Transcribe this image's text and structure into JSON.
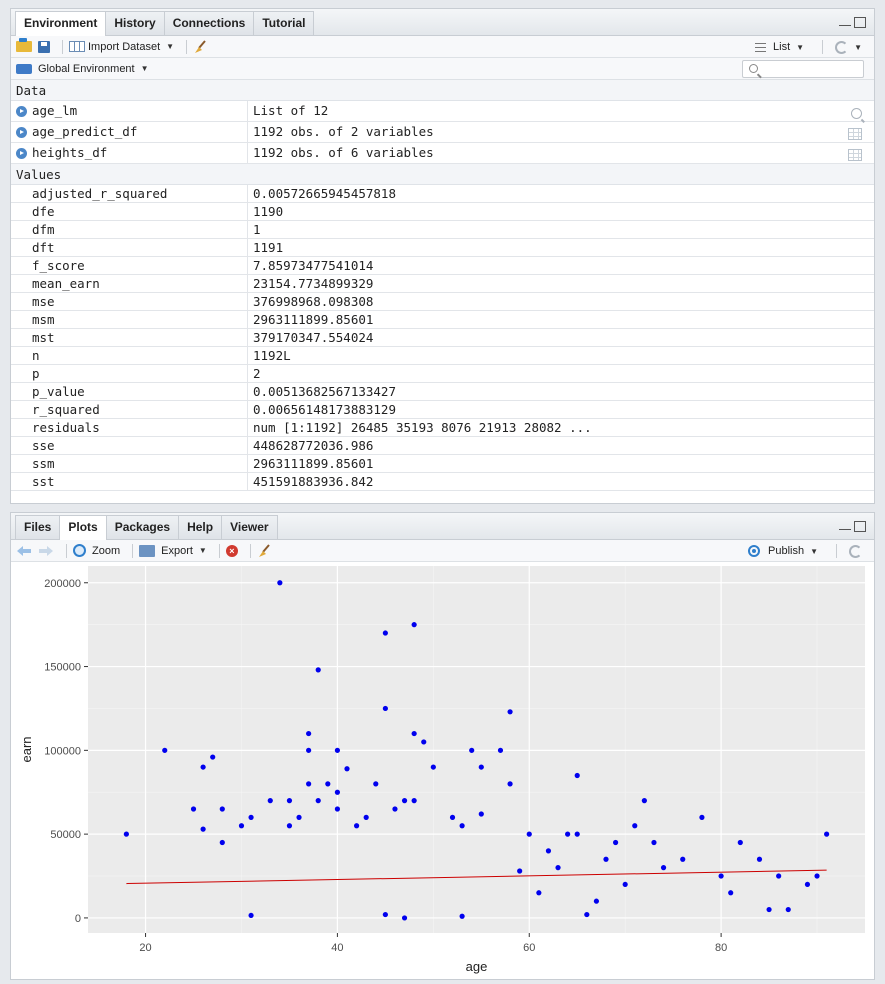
{
  "env_pane": {
    "tabs": [
      "Environment",
      "History",
      "Connections",
      "Tutorial"
    ],
    "active_tab": "Environment",
    "toolbar": {
      "import_label": "Import Dataset",
      "view_label": "List",
      "env_label": "Global Environment"
    },
    "search": {
      "placeholder": ""
    },
    "data_header": "Data",
    "values_header": "Values",
    "data_rows": [
      {
        "name": "age_lm",
        "value": "List of 12",
        "icon": "search-icon"
      },
      {
        "name": "age_predict_df",
        "value": "1192 obs. of 2 variables",
        "icon": "grid-icon"
      },
      {
        "name": "heights_df",
        "value": "1192 obs. of 6 variables",
        "icon": "grid-icon"
      }
    ],
    "value_rows": [
      {
        "name": "adjusted_r_squared",
        "value": "0.00572665945457818"
      },
      {
        "name": "dfe",
        "value": "1190"
      },
      {
        "name": "dfm",
        "value": "1"
      },
      {
        "name": "dft",
        "value": "1191"
      },
      {
        "name": "f_score",
        "value": "7.85973477541014"
      },
      {
        "name": "mean_earn",
        "value": "23154.7734899329"
      },
      {
        "name": "mse",
        "value": "376998968.098308"
      },
      {
        "name": "msm",
        "value": "2963111899.85601"
      },
      {
        "name": "mst",
        "value": "379170347.554024"
      },
      {
        "name": "n",
        "value": "1192L"
      },
      {
        "name": "p",
        "value": "2"
      },
      {
        "name": "p_value",
        "value": "0.00513682567133427"
      },
      {
        "name": "r_squared",
        "value": "0.00656148173883129"
      },
      {
        "name": "residuals",
        "value": "num [1:1192] 26485 35193 8076 21913 28082 ..."
      },
      {
        "name": "sse",
        "value": "448628772036.986"
      },
      {
        "name": "ssm",
        "value": "2963111899.85601"
      },
      {
        "name": "sst",
        "value": "451591883936.842"
      }
    ]
  },
  "plot_pane": {
    "tabs": [
      "Files",
      "Plots",
      "Packages",
      "Help",
      "Viewer"
    ],
    "active_tab": "Plots",
    "toolbar": {
      "zoom_label": "Zoom",
      "export_label": "Export",
      "publish_label": "Publish"
    }
  },
  "colors": {
    "points": "#0000ee",
    "fit_line": "#cc0000",
    "panel_bg": "#ebebeb",
    "accent": "#2f7fcc"
  },
  "chart_data": {
    "type": "scatter",
    "xlabel": "age",
    "ylabel": "earn",
    "xlim": [
      14,
      95
    ],
    "ylim": [
      -9000,
      210000
    ],
    "xticks": [
      20,
      40,
      60,
      80
    ],
    "yticks": [
      0,
      50000,
      100000,
      150000,
      200000
    ],
    "grid": true,
    "fit_line": {
      "x": [
        18,
        91
      ],
      "y": [
        20500,
        28500
      ]
    },
    "points": [
      [
        34,
        200000
      ],
      [
        45,
        170000
      ],
      [
        48,
        175000
      ],
      [
        38,
        148000
      ],
      [
        45,
        125000
      ],
      [
        58,
        123000
      ],
      [
        37,
        110000
      ],
      [
        48,
        110000
      ],
      [
        49,
        105000
      ],
      [
        22,
        100000
      ],
      [
        37,
        100000
      ],
      [
        40,
        100000
      ],
      [
        54,
        100000
      ],
      [
        57,
        100000
      ],
      [
        27,
        96000
      ],
      [
        26,
        90000
      ],
      [
        41,
        89000
      ],
      [
        50,
        90000
      ],
      [
        55,
        90000
      ],
      [
        65,
        85000
      ],
      [
        37,
        80000
      ],
      [
        39,
        80000
      ],
      [
        44,
        80000
      ],
      [
        58,
        80000
      ],
      [
        40,
        75000
      ],
      [
        38,
        70000
      ],
      [
        33,
        70000
      ],
      [
        35,
        70000
      ],
      [
        47,
        70000
      ],
      [
        48,
        70000
      ],
      [
        72,
        70000
      ],
      [
        25,
        65000
      ],
      [
        28,
        65000
      ],
      [
        36,
        60000
      ],
      [
        40,
        65000
      ],
      [
        46,
        65000
      ],
      [
        55,
        62000
      ],
      [
        31,
        60000
      ],
      [
        43,
        60000
      ],
      [
        52,
        60000
      ],
      [
        78,
        60000
      ],
      [
        30,
        55000
      ],
      [
        26,
        53000
      ],
      [
        35,
        55000
      ],
      [
        42,
        55000
      ],
      [
        53,
        55000
      ],
      [
        71,
        55000
      ],
      [
        18,
        50000
      ],
      [
        91,
        50000
      ],
      [
        65,
        50000
      ],
      [
        60,
        50000
      ],
      [
        64,
        50000
      ],
      [
        28,
        45000
      ],
      [
        82,
        45000
      ],
      [
        73,
        45000
      ],
      [
        69,
        45000
      ],
      [
        84,
        35000
      ],
      [
        86,
        25000
      ],
      [
        89,
        20000
      ],
      [
        85,
        5000
      ],
      [
        87,
        5000
      ],
      [
        53,
        1000
      ],
      [
        47,
        0
      ],
      [
        45,
        2000
      ],
      [
        66,
        2000
      ],
      [
        31,
        1500
      ],
      [
        90,
        25000
      ],
      [
        80,
        25000
      ],
      [
        81,
        15000
      ],
      [
        76,
        35000
      ],
      [
        74,
        30000
      ],
      [
        70,
        20000
      ],
      [
        67,
        10000
      ],
      [
        63,
        30000
      ],
      [
        61,
        15000
      ],
      [
        59,
        28000
      ],
      [
        62,
        40000
      ],
      [
        68,
        35000
      ]
    ]
  }
}
